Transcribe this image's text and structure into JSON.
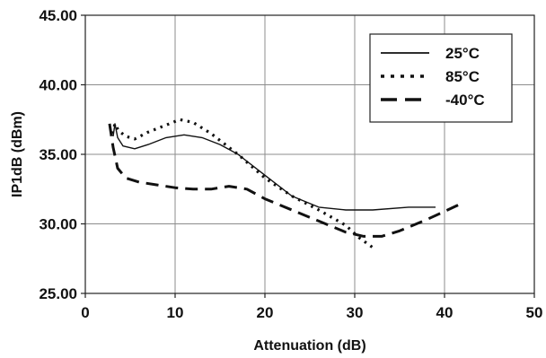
{
  "chart_data": {
    "type": "line",
    "xlabel": "Attenuation (dB)",
    "ylabel": "IP1dB (dBm)",
    "xlim": [
      0,
      50
    ],
    "ylim": [
      25,
      45
    ],
    "x_ticks": [
      0,
      10,
      20,
      30,
      40,
      50
    ],
    "x_tick_labels": [
      "0",
      "10",
      "20",
      "30",
      "40",
      "50"
    ],
    "y_ticks": [
      25,
      30,
      35,
      40,
      45
    ],
    "y_tick_labels": [
      "25.00",
      "30.00",
      "35.00",
      "40.00",
      "45.00"
    ],
    "grid": true,
    "legend_position": "top-right",
    "series": [
      {
        "name": "25°C",
        "style": "solid",
        "points": [
          [
            3.1,
            36.3
          ],
          [
            3.3,
            37.2
          ],
          [
            3.6,
            36.2
          ],
          [
            4.2,
            35.6
          ],
          [
            5.5,
            35.4
          ],
          [
            7,
            35.7
          ],
          [
            9,
            36.2
          ],
          [
            11,
            36.4
          ],
          [
            13,
            36.2
          ],
          [
            15,
            35.7
          ],
          [
            17,
            35.0
          ],
          [
            20,
            33.5
          ],
          [
            23,
            32.0
          ],
          [
            26,
            31.2
          ],
          [
            29,
            31.0
          ],
          [
            32,
            31.0
          ],
          [
            36,
            31.2
          ],
          [
            39,
            31.2
          ]
        ]
      },
      {
        "name": "85°C",
        "style": "dotted",
        "points": [
          [
            3.0,
            36.5
          ],
          [
            3.3,
            37.2
          ],
          [
            3.7,
            36.7
          ],
          [
            4.5,
            36.3
          ],
          [
            5.5,
            36.1
          ],
          [
            7,
            36.6
          ],
          [
            9,
            37.1
          ],
          [
            10.5,
            37.5
          ],
          [
            12,
            37.3
          ],
          [
            14,
            36.5
          ],
          [
            17,
            35.0
          ],
          [
            20,
            33.3
          ],
          [
            23,
            32.0
          ],
          [
            26,
            31.0
          ],
          [
            29,
            29.9
          ],
          [
            30.5,
            29.0
          ],
          [
            32,
            28.3
          ]
        ]
      },
      {
        "name": "-40°C",
        "style": "dashed",
        "points": [
          [
            2.7,
            37.2
          ],
          [
            3.1,
            35.5
          ],
          [
            3.6,
            34.0
          ],
          [
            4.5,
            33.3
          ],
          [
            6,
            33.0
          ],
          [
            8,
            32.8
          ],
          [
            10,
            32.6
          ],
          [
            12,
            32.5
          ],
          [
            14,
            32.5
          ],
          [
            16,
            32.7
          ],
          [
            18,
            32.5
          ],
          [
            20,
            31.8
          ],
          [
            23,
            31.0
          ],
          [
            26,
            30.2
          ],
          [
            29,
            29.4
          ],
          [
            31,
            29.1
          ],
          [
            33,
            29.1
          ],
          [
            35,
            29.5
          ],
          [
            38,
            30.3
          ],
          [
            40,
            30.9
          ],
          [
            42,
            31.5
          ]
        ]
      }
    ]
  }
}
